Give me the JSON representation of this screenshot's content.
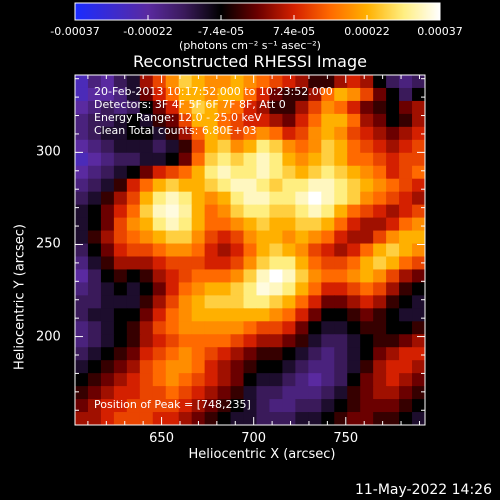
{
  "colorbar": {
    "tick_labels": [
      "-0.00037",
      "-0.00022",
      "-7.4e-05",
      "7.4e-05",
      "0.00022",
      "0.00037"
    ],
    "units_label": "(photons cm⁻² s⁻¹ asec⁻²)",
    "stops": [
      "#1a2cff",
      "#3b2bd0",
      "#5a2aa0",
      "#3a1a5a",
      "#000000",
      "#6b0000",
      "#d42000",
      "#ff6a00",
      "#ffb000",
      "#ffee80",
      "#ffffff"
    ]
  },
  "title": "Reconstructed RHESSI Image",
  "info_lines": [
    "20-Feb-2013 10:17:52.000 to 10:23:52.000",
    "Detectors: 3F 4F 5F 6F 7F 8F, Att 0",
    "Energy Range: 12.0 - 25.0 keV",
    "Clean     Total counts: 6.80E+03"
  ],
  "peak_label": "Position of Peak = [748,235]",
  "timestamp": "11-May-2022 14:26",
  "chart_data": {
    "type": "heatmap",
    "title": "Reconstructed RHESSI Image",
    "xlabel": "Heliocentric X (arcsec)",
    "ylabel": "Heliocentric Y (arcsec)",
    "xlim": [
      603,
      793
    ],
    "ylim": [
      152,
      342
    ],
    "x_ticks": [
      650,
      700,
      750
    ],
    "y_ticks": [
      200,
      250,
      300
    ],
    "colorbar_range": [
      -0.00037,
      0.00037
    ],
    "peak": [
      748,
      235
    ],
    "grid_n": 27,
    "z": [
      [
        -0.7,
        -0.5,
        -0.6,
        -0.4,
        -0.3,
        0.1,
        0.3,
        0.5,
        0.7,
        0.6,
        0.5,
        0.5,
        0.6,
        0.5,
        0.4,
        0.3,
        0.2,
        0.1,
        -0.1,
        -0.1,
        0.1,
        0.2,
        0.1,
        -0.2,
        -0.4,
        -0.5,
        -0.4
      ],
      [
        -0.7,
        -0.6,
        -0.6,
        -0.5,
        -0.3,
        0.0,
        0.2,
        0.4,
        0.6,
        0.6,
        0.5,
        0.6,
        0.6,
        0.4,
        0.2,
        0.0,
        -0.1,
        -0.1,
        0.1,
        0.4,
        0.6,
        0.5,
        0.3,
        0.0,
        -0.2,
        -0.4,
        -0.2
      ],
      [
        -0.6,
        -0.5,
        -0.4,
        -0.5,
        -0.4,
        -0.2,
        0.0,
        0.2,
        0.5,
        0.7,
        0.6,
        0.5,
        0.4,
        0.2,
        0.1,
        -0.1,
        -0.1,
        0.1,
        0.3,
        0.5,
        0.4,
        0.2,
        0.0,
        -0.1,
        -0.2,
        0.0,
        0.1
      ],
      [
        -0.5,
        -0.4,
        -0.4,
        -0.3,
        -0.2,
        -0.3,
        -0.1,
        0.0,
        0.3,
        0.6,
        0.6,
        0.4,
        0.3,
        0.2,
        0.2,
        0.1,
        0.0,
        0.2,
        0.4,
        0.6,
        0.6,
        0.4,
        0.1,
        0.0,
        -0.2,
        -0.1,
        0.1
      ],
      [
        -0.5,
        -0.4,
        -0.3,
        -0.3,
        -0.2,
        -0.2,
        -0.3,
        -0.1,
        0.1,
        0.4,
        0.6,
        0.5,
        0.3,
        0.4,
        0.5,
        0.4,
        0.2,
        0.3,
        0.5,
        0.6,
        0.5,
        0.3,
        0.2,
        0.1,
        0.0,
        0.1,
        0.2
      ],
      [
        -0.6,
        -0.5,
        -0.4,
        -0.3,
        -0.3,
        -0.3,
        -0.4,
        -0.3,
        -0.1,
        0.3,
        0.6,
        0.7,
        0.5,
        0.6,
        0.8,
        0.7,
        0.5,
        0.4,
        0.5,
        0.7,
        0.6,
        0.4,
        0.3,
        0.2,
        0.1,
        0.2,
        0.3
      ],
      [
        -0.7,
        -0.6,
        -0.5,
        -0.4,
        -0.4,
        -0.3,
        -0.3,
        -0.2,
        0.0,
        0.4,
        0.7,
        0.8,
        0.7,
        0.8,
        0.9,
        0.8,
        0.6,
        0.5,
        0.6,
        0.7,
        0.6,
        0.4,
        0.4,
        0.3,
        0.2,
        0.3,
        0.3
      ],
      [
        -0.6,
        -0.5,
        -0.4,
        -0.3,
        -0.2,
        0.0,
        0.2,
        0.3,
        0.4,
        0.6,
        0.8,
        0.9,
        0.8,
        0.8,
        0.9,
        0.8,
        0.7,
        0.6,
        0.7,
        0.8,
        0.7,
        0.6,
        0.5,
        0.4,
        0.2,
        0.3,
        0.4
      ],
      [
        -0.5,
        -0.4,
        -0.3,
        -0.1,
        0.2,
        0.4,
        0.6,
        0.7,
        0.6,
        0.6,
        0.7,
        0.8,
        0.9,
        0.9,
        0.8,
        0.7,
        0.8,
        0.8,
        0.9,
        0.9,
        0.8,
        0.7,
        0.6,
        0.5,
        0.4,
        0.3,
        0.2
      ],
      [
        -0.4,
        -0.3,
        -0.1,
        0.1,
        0.3,
        0.6,
        0.8,
        0.9,
        0.8,
        0.6,
        0.5,
        0.6,
        0.8,
        0.9,
        0.9,
        0.8,
        0.8,
        0.9,
        1.0,
        0.9,
        0.8,
        0.7,
        0.5,
        0.4,
        0.3,
        0.2,
        0.1
      ],
      [
        -0.3,
        -0.2,
        0.0,
        0.2,
        0.4,
        0.7,
        0.9,
        0.95,
        0.85,
        0.6,
        0.4,
        0.5,
        0.7,
        0.8,
        0.8,
        0.7,
        0.7,
        0.8,
        0.9,
        0.8,
        0.6,
        0.4,
        0.3,
        0.2,
        0.1,
        0.2,
        0.3
      ],
      [
        -0.3,
        -0.2,
        0.0,
        0.3,
        0.5,
        0.6,
        0.8,
        0.9,
        0.8,
        0.6,
        0.4,
        0.4,
        0.5,
        0.6,
        0.7,
        0.6,
        0.6,
        0.7,
        0.7,
        0.6,
        0.4,
        0.2,
        0.1,
        0.1,
        0.2,
        0.4,
        0.5
      ],
      [
        -0.3,
        -0.1,
        0.1,
        0.3,
        0.4,
        0.5,
        0.6,
        0.7,
        0.7,
        0.5,
        0.3,
        0.2,
        0.3,
        0.5,
        0.6,
        0.6,
        0.5,
        0.6,
        0.5,
        0.4,
        0.2,
        0.1,
        0.1,
        0.3,
        0.5,
        0.6,
        0.6
      ],
      [
        -0.4,
        -0.2,
        0.0,
        0.2,
        0.3,
        0.3,
        0.4,
        0.5,
        0.5,
        0.4,
        0.2,
        0.1,
        0.2,
        0.4,
        0.6,
        0.7,
        0.6,
        0.5,
        0.3,
        0.2,
        0.1,
        0.2,
        0.4,
        0.6,
        0.7,
        0.6,
        0.5
      ],
      [
        -0.5,
        -0.3,
        -0.1,
        0.1,
        0.1,
        0.1,
        0.2,
        0.3,
        0.3,
        0.3,
        0.2,
        0.2,
        0.3,
        0.5,
        0.7,
        0.8,
        0.8,
        0.6,
        0.4,
        0.3,
        0.3,
        0.4,
        0.6,
        0.7,
        0.6,
        0.4,
        0.3
      ],
      [
        -0.6,
        -0.4,
        -0.2,
        -0.1,
        -0.2,
        -0.1,
        0.1,
        0.2,
        0.3,
        0.4,
        0.4,
        0.4,
        0.5,
        0.7,
        0.9,
        1.0,
        0.9,
        0.7,
        0.5,
        0.4,
        0.4,
        0.5,
        0.6,
        0.5,
        0.3,
        0.1,
        0.0
      ],
      [
        -0.5,
        -0.4,
        -0.3,
        -0.2,
        -0.3,
        -0.2,
        0.0,
        0.2,
        0.4,
        0.5,
        0.6,
        0.6,
        0.7,
        0.8,
        0.95,
        0.9,
        0.8,
        0.6,
        0.4,
        0.2,
        0.2,
        0.3,
        0.4,
        0.3,
        0.1,
        -0.1,
        -0.2
      ],
      [
        -0.4,
        -0.4,
        -0.3,
        -0.3,
        -0.3,
        -0.1,
        0.1,
        0.3,
        0.5,
        0.6,
        0.7,
        0.7,
        0.7,
        0.8,
        0.8,
        0.7,
        0.6,
        0.4,
        0.2,
        0.0,
        0.0,
        0.1,
        0.2,
        0.1,
        -0.1,
        -0.2,
        -0.3
      ],
      [
        -0.4,
        -0.3,
        -0.3,
        -0.2,
        -0.2,
        0.0,
        0.2,
        0.4,
        0.5,
        0.6,
        0.6,
        0.6,
        0.6,
        0.6,
        0.6,
        0.5,
        0.4,
        0.2,
        0.0,
        -0.2,
        -0.2,
        -0.1,
        0.0,
        -0.1,
        -0.2,
        -0.3,
        -0.3
      ],
      [
        -0.5,
        -0.4,
        -0.3,
        -0.2,
        -0.1,
        0.1,
        0.3,
        0.4,
        0.5,
        0.5,
        0.5,
        0.5,
        0.5,
        0.4,
        0.3,
        0.3,
        0.2,
        0.0,
        -0.2,
        -0.3,
        -0.3,
        -0.2,
        -0.1,
        -0.1,
        -0.2,
        -0.2,
        -0.1
      ],
      [
        -0.5,
        -0.4,
        -0.3,
        -0.2,
        -0.1,
        0.1,
        0.2,
        0.3,
        0.4,
        0.4,
        0.4,
        0.4,
        0.3,
        0.2,
        0.1,
        0.1,
        0.0,
        -0.1,
        -0.3,
        -0.4,
        -0.4,
        -0.3,
        -0.2,
        -0.1,
        -0.1,
        0.0,
        0.1
      ],
      [
        -0.4,
        -0.3,
        -0.2,
        -0.1,
        0.0,
        0.2,
        0.3,
        0.4,
        0.5,
        0.4,
        0.3,
        0.2,
        0.1,
        0.0,
        -0.1,
        -0.1,
        -0.2,
        -0.3,
        -0.4,
        -0.5,
        -0.4,
        -0.3,
        -0.2,
        0.0,
        0.1,
        0.2,
        0.2
      ],
      [
        -0.3,
        -0.2,
        -0.1,
        0.0,
        0.1,
        0.3,
        0.4,
        0.5,
        0.5,
        0.4,
        0.2,
        0.1,
        0.0,
        -0.1,
        -0.2,
        -0.2,
        -0.3,
        -0.4,
        -0.5,
        -0.5,
        -0.4,
        -0.3,
        -0.1,
        0.1,
        0.2,
        0.2,
        0.1
      ],
      [
        -0.2,
        -0.1,
        0.0,
        0.1,
        0.2,
        0.3,
        0.4,
        0.5,
        0.4,
        0.3,
        0.2,
        0.1,
        0.0,
        -0.2,
        -0.3,
        -0.3,
        -0.4,
        -0.5,
        -0.6,
        -0.5,
        -0.4,
        -0.2,
        0.0,
        0.1,
        0.2,
        0.1,
        0.0
      ],
      [
        -0.1,
        0.0,
        0.1,
        0.2,
        0.2,
        0.3,
        0.3,
        0.4,
        0.3,
        0.2,
        0.1,
        0.0,
        -0.1,
        -0.3,
        -0.4,
        -0.4,
        -0.5,
        -0.5,
        -0.5,
        -0.4,
        -0.3,
        -0.1,
        0.0,
        0.1,
        0.1,
        0.0,
        -0.1
      ],
      [
        0.0,
        0.1,
        0.2,
        0.2,
        0.3,
        0.3,
        0.3,
        0.3,
        0.2,
        0.1,
        0.0,
        -0.1,
        -0.2,
        -0.3,
        -0.4,
        -0.5,
        -0.5,
        -0.4,
        -0.4,
        -0.3,
        -0.2,
        -0.1,
        0.0,
        0.0,
        0.0,
        -0.1,
        -0.2
      ],
      [
        0.1,
        0.1,
        0.2,
        0.3,
        0.3,
        0.3,
        0.2,
        0.2,
        0.1,
        0.0,
        -0.1,
        -0.2,
        -0.3,
        -0.3,
        -0.4,
        -0.4,
        -0.4,
        -0.3,
        -0.3,
        -0.2,
        -0.1,
        0.0,
        0.0,
        -0.1,
        -0.1,
        -0.2,
        -0.3
      ]
    ]
  }
}
